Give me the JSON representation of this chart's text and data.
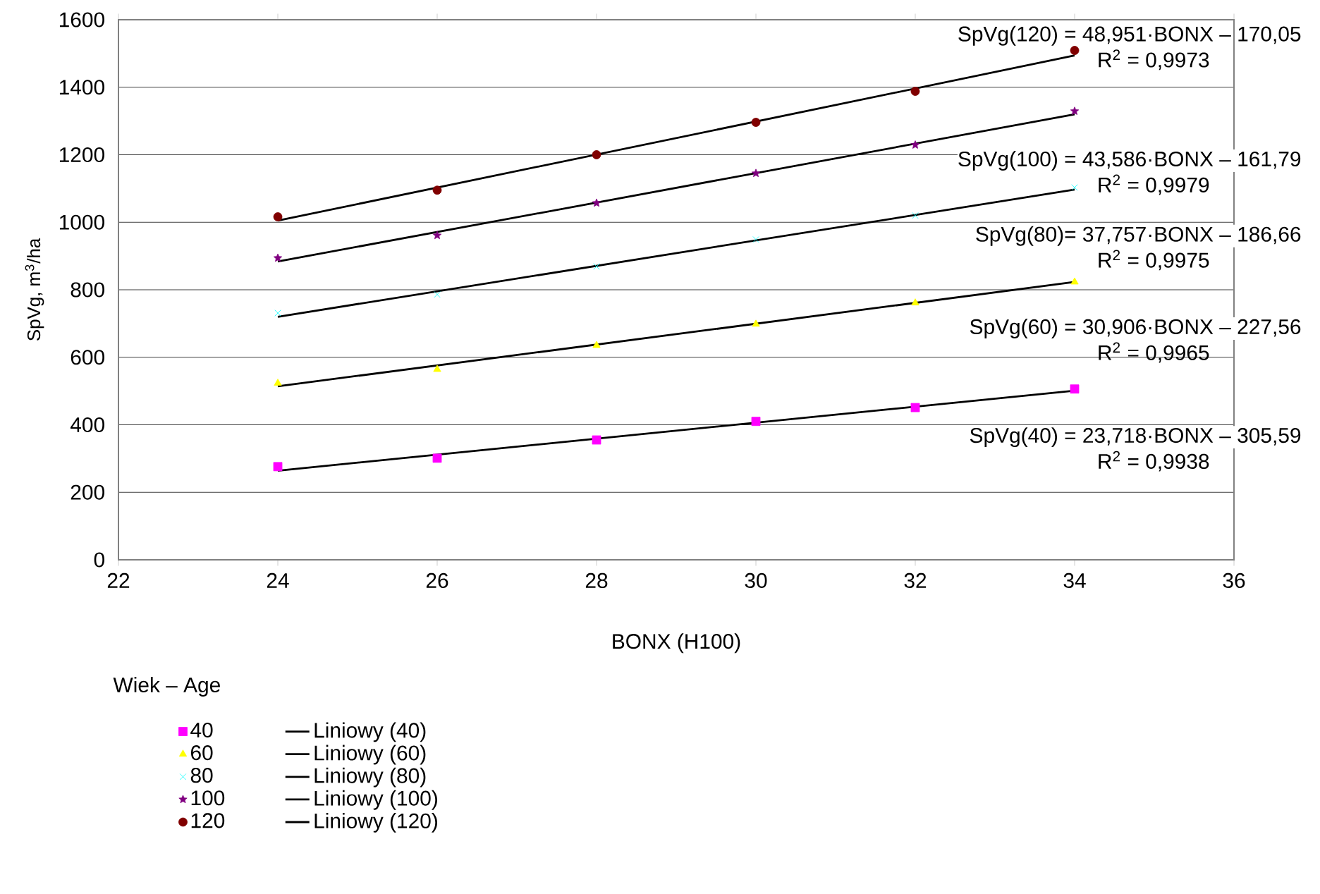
{
  "chart_data": {
    "type": "scatter",
    "xlabel": "BONX (H100)",
    "ylabel": "SpVg, m$^{3}$/ha",
    "legend_title": "Wiek – Age",
    "legend": "bottom left",
    "grid": "y",
    "xlim": [
      22,
      36
    ],
    "xticks": [
      22,
      24,
      26,
      28,
      30,
      32,
      34,
      36
    ],
    "ylim": [
      0,
      1600
    ],
    "yticks": [
      0,
      200,
      400,
      600,
      800,
      1000,
      1200,
      1400,
      1600
    ],
    "series": [
      {
        "name": "40",
        "marker": "square",
        "color": "#ff00ff",
        "x": [
          24,
          26,
          28,
          30,
          32,
          34
        ],
        "values": [
          276,
          301,
          355,
          410,
          451,
          506
        ]
      },
      {
        "name": "Liniowy (40)",
        "type": "line",
        "marker": "none",
        "color": "#000000",
        "x": [
          24,
          34
        ],
        "values": [
          264,
          501
        ]
      },
      {
        "name": "60",
        "marker": "triangle",
        "color": "#ffff00",
        "x": [
          24,
          26,
          28,
          30,
          32,
          34
        ],
        "values": [
          523,
          564,
          635,
          698,
          761,
          823
        ]
      },
      {
        "name": "Liniowy (60)",
        "type": "line",
        "marker": "none",
        "color": "#000000",
        "x": [
          24,
          34
        ],
        "values": [
          514,
          823
        ]
      },
      {
        "name": "80",
        "marker": "cross",
        "color": "#00ffff",
        "x": [
          24,
          26,
          28,
          30,
          32,
          34
        ],
        "values": [
          731,
          786,
          869,
          949,
          1020,
          1103
        ]
      },
      {
        "name": "Liniowy (80)",
        "type": "line",
        "marker": "none",
        "color": "#000000",
        "x": [
          24,
          34
        ],
        "values": [
          720,
          1097
        ]
      },
      {
        "name": "100",
        "marker": "star",
        "color": "#800080",
        "x": [
          24,
          26,
          28,
          30,
          32,
          34
        ],
        "values": [
          894,
          961,
          1057,
          1145,
          1229,
          1329
        ]
      },
      {
        "name": "Liniowy (100)",
        "type": "line",
        "marker": "none",
        "color": "#000000",
        "x": [
          24,
          34
        ],
        "values": [
          884,
          1320
        ]
      },
      {
        "name": "120",
        "marker": "circle",
        "color": "#800000",
        "x": [
          24,
          26,
          28,
          30,
          32,
          34
        ],
        "values": [
          1016,
          1095,
          1200,
          1296,
          1388,
          1509
        ]
      },
      {
        "name": "Liniowy (120)",
        "type": "line",
        "marker": "none",
        "color": "#000000",
        "x": [
          24,
          34
        ],
        "values": [
          1005,
          1494
        ]
      }
    ],
    "annotations": [
      "SpVg(120) = 48,951·BONX – 170,05",
      "R$^{2}$ = 0,9973",
      "SpVg(100) = 43,586·BONX – 161,79",
      "R$^{2}$ = 0,9979",
      "SpVg(80)= 37,757·BONX – 186,66",
      "R$^{2}$ = 0,9975",
      "SpVg(60) = 30,906·BONX – 227,56",
      "R$^{2}$ = 0,9965",
      "SpVg(40) = 23,718·BONX – 305,59",
      "R$^{2}$ = 0,9938"
    ]
  }
}
